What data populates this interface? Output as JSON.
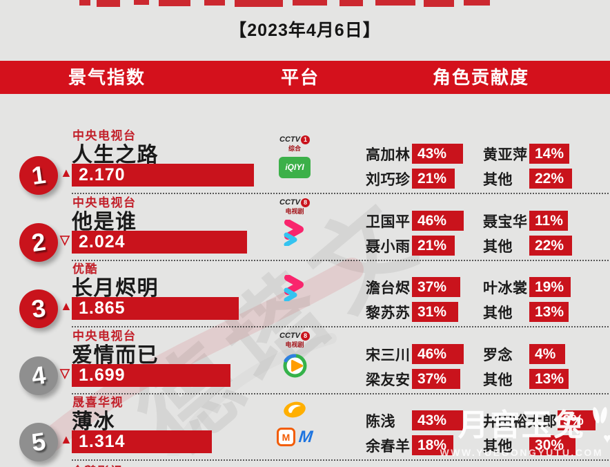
{
  "page": {
    "date": "【2023年4月6日】"
  },
  "colors": {
    "accent_red": "#c9131c",
    "header_red": "#d4111c",
    "badge_gray": "#8f8f8f",
    "background": "#e4e4e3",
    "iqiyi_green": "#3cb049",
    "youku_pink": "#f9256d",
    "youku_cyan": "#34c3f0",
    "mgtv_orange": "#f25c05",
    "blue_m": "#1d74e0"
  },
  "icons": {
    "trend_up": "▲",
    "trend_down": "▽"
  },
  "header": {
    "col_index": "景气指数",
    "col_platform": "平台",
    "col_contribution": "角色贡献度"
  },
  "watermarks": {
    "center_logo_text": "德塔文",
    "brand": "月宫玉兔",
    "site": "WWW.YUEGONGYUTU.COM"
  },
  "next_row_preview": {
    "company": "企鹅影视"
  },
  "platform_assets": {
    "cctv1": {
      "kind": "cctv",
      "word": "CCTV",
      "num": "1",
      "sub": "综合"
    },
    "iqiyi": {
      "kind": "iqiyi",
      "word": "iQIYI"
    },
    "cctv8": {
      "kind": "cctv",
      "word": "CCTV",
      "num": "8",
      "sub": "电视剧"
    },
    "youku": {
      "kind": "youku"
    },
    "tencent_video": {
      "kind": "tencent"
    },
    "hunan_tv": {
      "kind": "hunan"
    },
    "mgtv": {
      "kind": "mgtv",
      "word": "M"
    },
    "blue_m": {
      "kind": "bluem",
      "word": "M"
    }
  },
  "chart_data": {
    "type": "table",
    "title": "【2023年4月6日】",
    "columns": [
      "景气指数",
      "平台",
      "角色贡献度"
    ],
    "rows": [
      {
        "rank": "1",
        "badge": "red",
        "trend": "up",
        "company": "中央电视台",
        "title": "人生之路",
        "index": 2.17,
        "index_label": "2.170",
        "platform_lines": [
          [
            "cctv1"
          ],
          [
            "iqiyi"
          ]
        ],
        "contributions": [
          {
            "name": "高加林",
            "pct": 43,
            "label": "43%"
          },
          {
            "name": "黄亚萍",
            "pct": 14,
            "label": "14%"
          },
          {
            "name": "刘巧珍",
            "pct": 21,
            "label": "21%"
          },
          {
            "name": "其他",
            "pct": 22,
            "label": "22%"
          }
        ]
      },
      {
        "rank": "2",
        "badge": "red",
        "trend": "down",
        "company": "中央电视台",
        "title": "他是谁",
        "index": 2.024,
        "index_label": "2.024",
        "platform_lines": [
          [
            "cctv8"
          ],
          [
            "youku"
          ]
        ],
        "contributions": [
          {
            "name": "卫国平",
            "pct": 46,
            "label": "46%"
          },
          {
            "name": "聂宝华",
            "pct": 11,
            "label": "11%"
          },
          {
            "name": "聂小雨",
            "pct": 21,
            "label": "21%"
          },
          {
            "name": "其他",
            "pct": 22,
            "label": "22%"
          }
        ]
      },
      {
        "rank": "3",
        "badge": "red",
        "trend": "up",
        "company": "优酷",
        "title": "长月烬明",
        "index": 1.865,
        "index_label": "1.865",
        "platform_lines": [
          [
            "youku"
          ]
        ],
        "contributions": [
          {
            "name": "澹台烬",
            "pct": 37,
            "label": "37%"
          },
          {
            "name": "叶冰裳",
            "pct": 19,
            "label": "19%"
          },
          {
            "name": "黎苏苏",
            "pct": 31,
            "label": "31%"
          },
          {
            "name": "其他",
            "pct": 13,
            "label": "13%"
          }
        ]
      },
      {
        "rank": "4",
        "badge": "gray",
        "trend": "down",
        "company": "中央电视台",
        "title": "爱情而已",
        "index": 1.699,
        "index_label": "1.699",
        "platform_lines": [
          [
            "cctv8"
          ],
          [
            "tencent_video"
          ]
        ],
        "contributions": [
          {
            "name": "宋三川",
            "pct": 46,
            "label": "46%"
          },
          {
            "name": "罗念",
            "pct": 4,
            "label": "4%"
          },
          {
            "name": "梁友安",
            "pct": 37,
            "label": "37%"
          },
          {
            "name": "其他",
            "pct": 13,
            "label": "13%"
          }
        ]
      },
      {
        "rank": "5",
        "badge": "gray",
        "trend": "up",
        "company": "晟喜华视",
        "title": "薄冰",
        "index": 1.314,
        "index_label": "1.314",
        "platform_lines": [
          [
            "hunan_tv"
          ],
          [
            "mgtv",
            "blue_m"
          ]
        ],
        "contributions": [
          {
            "name": "陈浅",
            "pct": 43,
            "label": "43%"
          },
          {
            "name": "井田裕太郎",
            "pct": 9,
            "label": "9%"
          },
          {
            "name": "余春羊",
            "pct": 18,
            "label": "18%"
          },
          {
            "name": "其他",
            "pct": 30,
            "label": "30%"
          }
        ]
      }
    ]
  }
}
